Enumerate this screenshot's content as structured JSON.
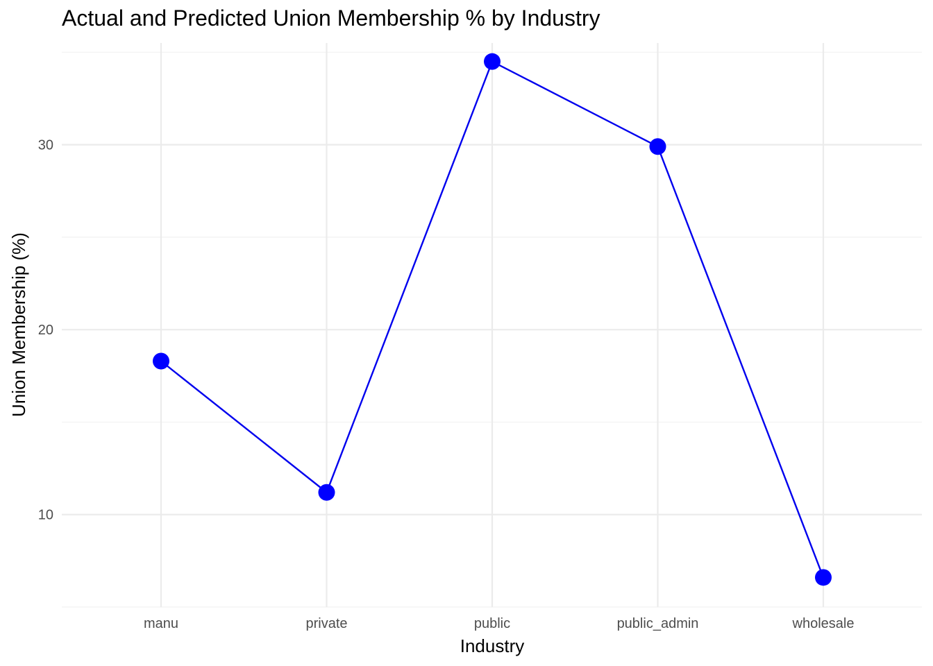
{
  "chart_data": {
    "type": "line",
    "title": "Actual and Predicted Union Membership % by Industry",
    "xlabel": "Industry",
    "ylabel": "Union Membership (%)",
    "categories": [
      "manu",
      "private",
      "public",
      "public_admin",
      "wholesale"
    ],
    "series": [
      {
        "values": [
          18.3,
          11.2,
          34.5,
          29.9,
          6.6
        ]
      }
    ],
    "ylim": [
      5.0,
      35.5
    ],
    "yticks": [
      10,
      20,
      30
    ],
    "grid": true,
    "legend": "none",
    "colors": {
      "line": "#0000ee",
      "point": "#0000ff",
      "grid_major": "#ebebeb",
      "grid_minor": "#f2f2f2"
    }
  }
}
